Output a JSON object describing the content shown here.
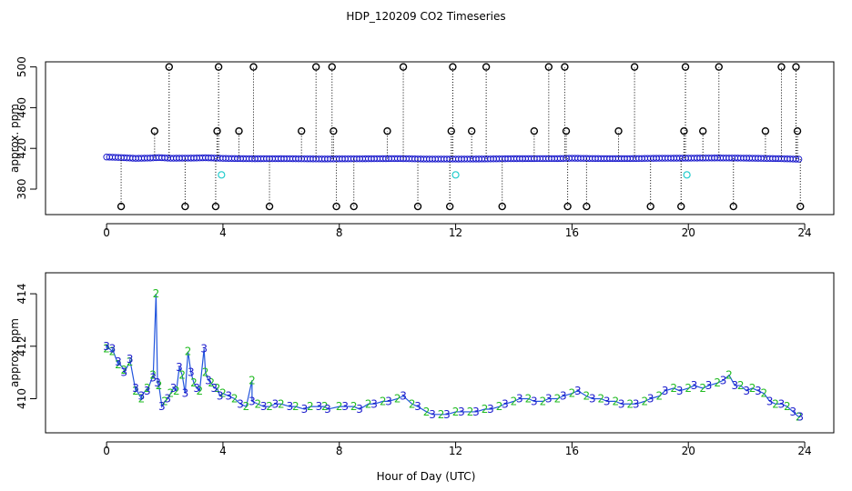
{
  "title": "HDP_120209  CO2 Timeseries",
  "xlabel": "Hour of Day (UTC)",
  "chart_data": [
    {
      "type": "scatter",
      "ylabel": "approx. ppm",
      "xlim": [
        -2.1,
        25
      ],
      "ylim": [
        355,
        505
      ],
      "xticks": [
        0,
        4,
        8,
        12,
        16,
        20,
        24
      ],
      "yticks": [
        380,
        420,
        460,
        500
      ],
      "baseline": [
        [
          0.0,
          411.5
        ],
        [
          0.5,
          411.0
        ],
        [
          1.0,
          410.2
        ],
        [
          1.5,
          410.5
        ],
        [
          1.8,
          411.0
        ],
        [
          2.2,
          410.3
        ],
        [
          3.0,
          410.5
        ],
        [
          3.4,
          410.8
        ],
        [
          4.0,
          410.2
        ],
        [
          5.0,
          409.8
        ],
        [
          6.0,
          409.9
        ],
        [
          7.5,
          409.6
        ],
        [
          8.0,
          409.7
        ],
        [
          9.0,
          409.8
        ],
        [
          10.0,
          410.0
        ],
        [
          11.0,
          409.5
        ],
        [
          12.0,
          409.5
        ],
        [
          13.0,
          409.6
        ],
        [
          14.0,
          409.9
        ],
        [
          15.5,
          410.0
        ],
        [
          16.0,
          410.3
        ],
        [
          17.0,
          410.0
        ],
        [
          18.0,
          410.0
        ],
        [
          19.0,
          410.3
        ],
        [
          20.0,
          410.4
        ],
        [
          21.0,
          410.6
        ],
        [
          22.0,
          410.4
        ],
        [
          23.0,
          410.0
        ],
        [
          23.8,
          409.4
        ]
      ],
      "spikes_high": [
        2.15,
        3.85,
        5.05,
        7.2,
        7.75,
        10.2,
        11.9,
        13.05,
        15.2,
        15.75,
        18.15,
        19.9,
        21.05,
        23.2,
        23.7
      ],
      "spikes_mid": [
        1.65,
        3.8,
        4.55,
        6.7,
        7.8,
        9.65,
        11.85,
        12.55,
        14.7,
        15.8,
        17.6,
        19.85,
        20.5,
        22.65,
        23.75
      ],
      "spikes_low": [
        0.5,
        2.7,
        3.75,
        5.6,
        7.9,
        8.5,
        10.7,
        11.8,
        13.6,
        15.85,
        16.5,
        18.7,
        19.75,
        21.55,
        23.85
      ],
      "cyan_points": [
        [
          3.95,
          394
        ],
        [
          12.0,
          394
        ],
        [
          19.95,
          394
        ]
      ]
    },
    {
      "type": "scatter",
      "ylabel": "approx. ppm",
      "xlim": [
        -2.1,
        25
      ],
      "ylim": [
        408.7,
        414.8
      ],
      "xticks": [
        0,
        4,
        8,
        12,
        16,
        20,
        24
      ],
      "yticks": [
        410,
        412,
        414
      ],
      "markers": [
        "2",
        "3"
      ],
      "series": [
        {
          "values": [
            [
              0.0,
              411.9
            ],
            [
              0.2,
              411.8
            ],
            [
              0.4,
              411.3
            ],
            [
              0.6,
              411.1
            ],
            [
              0.8,
              411.4
            ],
            [
              1.0,
              410.3
            ],
            [
              1.2,
              410.0
            ],
            [
              1.4,
              410.4
            ],
            [
              1.6,
              410.9
            ],
            [
              1.7,
              414.0
            ],
            [
              1.8,
              410.5
            ],
            [
              2.0,
              409.9
            ],
            [
              2.2,
              410.2
            ],
            [
              2.4,
              410.3
            ],
            [
              2.6,
              410.9
            ],
            [
              2.8,
              411.8
            ],
            [
              3.0,
              410.6
            ],
            [
              3.2,
              410.3
            ],
            [
              3.4,
              411.0
            ],
            [
              3.6,
              410.6
            ],
            [
              3.8,
              410.4
            ],
            [
              4.0,
              410.2
            ],
            [
              4.4,
              410.0
            ],
            [
              4.8,
              409.7
            ],
            [
              5.0,
              410.7
            ],
            [
              5.2,
              409.8
            ],
            [
              5.6,
              409.7
            ],
            [
              6.0,
              409.8
            ],
            [
              6.5,
              409.7
            ],
            [
              7.0,
              409.7
            ],
            [
              7.5,
              409.7
            ],
            [
              8.0,
              409.7
            ],
            [
              8.5,
              409.7
            ],
            [
              9.0,
              409.8
            ],
            [
              9.5,
              409.9
            ],
            [
              10.0,
              410.0
            ],
            [
              10.5,
              409.8
            ],
            [
              11.0,
              409.5
            ],
            [
              11.5,
              409.4
            ],
            [
              12.0,
              409.5
            ],
            [
              12.5,
              409.5
            ],
            [
              13.0,
              409.6
            ],
            [
              13.5,
              409.7
            ],
            [
              14.0,
              409.9
            ],
            [
              14.5,
              410.0
            ],
            [
              15.0,
              409.9
            ],
            [
              15.5,
              410.0
            ],
            [
              16.0,
              410.2
            ],
            [
              16.5,
              410.1
            ],
            [
              17.0,
              410.0
            ],
            [
              17.5,
              409.9
            ],
            [
              18.0,
              409.8
            ],
            [
              18.5,
              409.9
            ],
            [
              19.0,
              410.1
            ],
            [
              19.5,
              410.4
            ],
            [
              20.0,
              410.4
            ],
            [
              20.5,
              410.4
            ],
            [
              21.0,
              410.6
            ],
            [
              21.4,
              410.9
            ],
            [
              21.8,
              410.5
            ],
            [
              22.2,
              410.4
            ],
            [
              22.6,
              410.2
            ],
            [
              23.0,
              409.8
            ],
            [
              23.4,
              409.7
            ],
            [
              23.8,
              409.3
            ]
          ]
        },
        {
          "values": [
            [
              0.0,
              412.0
            ],
            [
              0.2,
              411.9
            ],
            [
              0.4,
              411.4
            ],
            [
              0.6,
              411.0
            ],
            [
              0.8,
              411.5
            ],
            [
              1.0,
              410.4
            ],
            [
              1.2,
              410.1
            ],
            [
              1.4,
              410.3
            ],
            [
              1.6,
              410.8
            ],
            [
              1.75,
              410.6
            ],
            [
              1.9,
              409.7
            ],
            [
              2.1,
              410.0
            ],
            [
              2.3,
              410.4
            ],
            [
              2.5,
              411.2
            ],
            [
              2.7,
              410.2
            ],
            [
              2.9,
              411.0
            ],
            [
              3.1,
              410.4
            ],
            [
              3.35,
              411.9
            ],
            [
              3.5,
              410.7
            ],
            [
              3.7,
              410.4
            ],
            [
              3.9,
              410.1
            ],
            [
              4.2,
              410.1
            ],
            [
              4.6,
              409.8
            ],
            [
              5.0,
              409.9
            ],
            [
              5.4,
              409.7
            ],
            [
              5.8,
              409.8
            ],
            [
              6.3,
              409.7
            ],
            [
              6.8,
              409.6
            ],
            [
              7.3,
              409.7
            ],
            [
              7.6,
              409.6
            ],
            [
              8.2,
              409.7
            ],
            [
              8.7,
              409.6
            ],
            [
              9.2,
              409.8
            ],
            [
              9.7,
              409.9
            ],
            [
              10.2,
              410.1
            ],
            [
              10.7,
              409.7
            ],
            [
              11.2,
              409.4
            ],
            [
              11.7,
              409.4
            ],
            [
              12.2,
              409.5
            ],
            [
              12.7,
              409.5
            ],
            [
              13.2,
              409.6
            ],
            [
              13.7,
              409.8
            ],
            [
              14.2,
              410.0
            ],
            [
              14.7,
              409.9
            ],
            [
              15.2,
              410.0
            ],
            [
              15.7,
              410.1
            ],
            [
              16.2,
              410.3
            ],
            [
              16.7,
              410.0
            ],
            [
              17.2,
              409.9
            ],
            [
              17.7,
              409.8
            ],
            [
              18.2,
              409.8
            ],
            [
              18.7,
              410.0
            ],
            [
              19.2,
              410.3
            ],
            [
              19.7,
              410.3
            ],
            [
              20.2,
              410.5
            ],
            [
              20.7,
              410.5
            ],
            [
              21.2,
              410.7
            ],
            [
              21.6,
              410.5
            ],
            [
              22.0,
              410.3
            ],
            [
              22.4,
              410.3
            ],
            [
              22.8,
              409.9
            ],
            [
              23.2,
              409.8
            ],
            [
              23.6,
              409.5
            ],
            [
              23.85,
              409.3
            ]
          ]
        }
      ],
      "colors": {
        "series_2": "#22bb22",
        "series_3": "#1a1acc",
        "line": "#2255dd"
      }
    }
  ]
}
